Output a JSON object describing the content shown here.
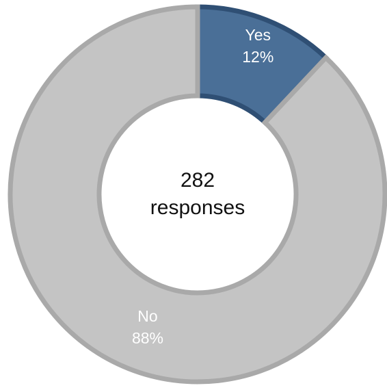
{
  "chart_data": {
    "type": "pie",
    "title": "",
    "center_text": {
      "count": "282",
      "label": "responses"
    },
    "slices": [
      {
        "label": "Yes",
        "value": 12,
        "display_value": "12%",
        "color": "#4a6f97",
        "stroke": "#2f4f74"
      },
      {
        "label": "No",
        "value": 88,
        "display_value": "88%",
        "color": "#c4c4c4",
        "stroke": "#a9a9a9"
      }
    ],
    "start_angle_deg": 0,
    "legend": "none",
    "grid": false
  }
}
